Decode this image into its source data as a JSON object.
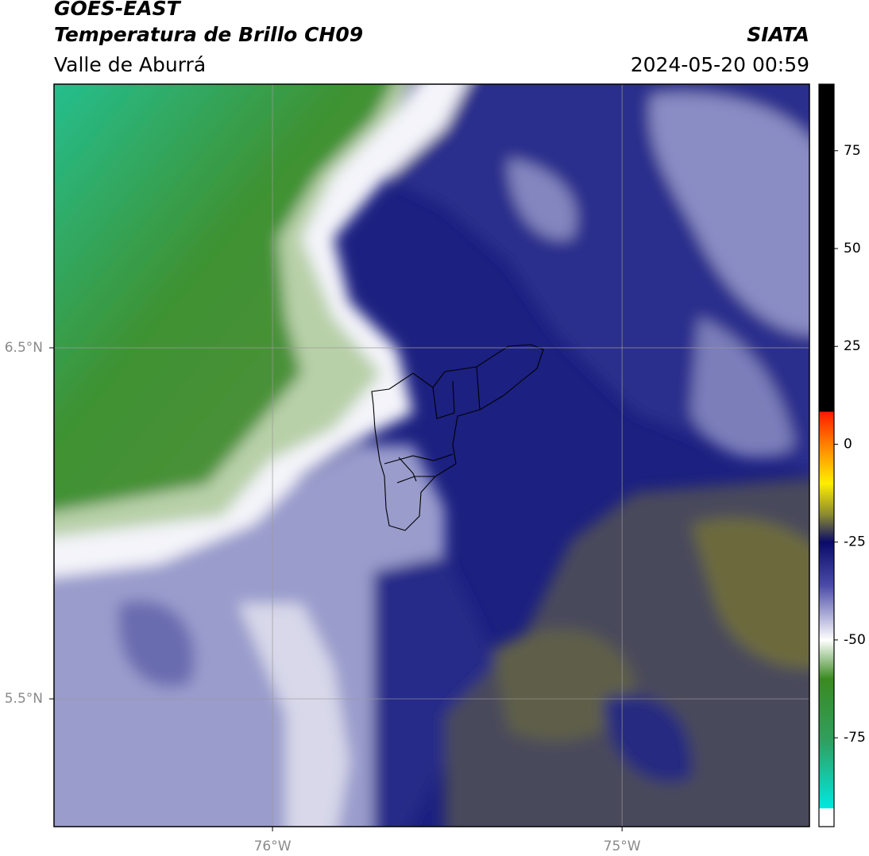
{
  "header": {
    "title": "GOES-EAST",
    "subtitle": "Temperatura de Brillo CH09",
    "region": "Valle de Aburrá",
    "source": "SIATA",
    "timestamp": "2024-05-20 00:59"
  },
  "map": {
    "xlim": [
      -76.625,
      -74.464
    ],
    "ylim": [
      5.136,
      7.251
    ],
    "xticks": [
      {
        "value": -76,
        "label": "76°W"
      },
      {
        "value": -75,
        "label": "75°W"
      }
    ],
    "yticks": [
      {
        "value": 6.5,
        "label": "6.5°N"
      },
      {
        "value": 5.5,
        "label": "5.5°N"
      }
    ],
    "grid": true
  },
  "colorbar": {
    "lim": [
      -97.7,
      92
    ],
    "ticks": [
      75,
      50,
      25,
      0,
      -25,
      -50,
      -75
    ],
    "stops": [
      {
        "value": 92,
        "color": "#000000"
      },
      {
        "value": 8.3,
        "color": "#000000"
      },
      {
        "value": 8.3,
        "color": "#ff1a00"
      },
      {
        "value": 0,
        "color": "#ff8000"
      },
      {
        "value": -10,
        "color": "#ffee00"
      },
      {
        "value": -18,
        "color": "#8a8a30"
      },
      {
        "value": -25,
        "color": "#0a0a6a"
      },
      {
        "value": -36,
        "color": "#4a4aa8"
      },
      {
        "value": -50,
        "color": "#ffffff"
      },
      {
        "value": -60,
        "color": "#3a8a20"
      },
      {
        "value": -76,
        "color": "#30a060"
      },
      {
        "value": -93,
        "color": "#00e8e0"
      },
      {
        "value": -93,
        "color": "#ffffff"
      },
      {
        "value": -97.7,
        "color": "#ffffff"
      }
    ]
  }
}
